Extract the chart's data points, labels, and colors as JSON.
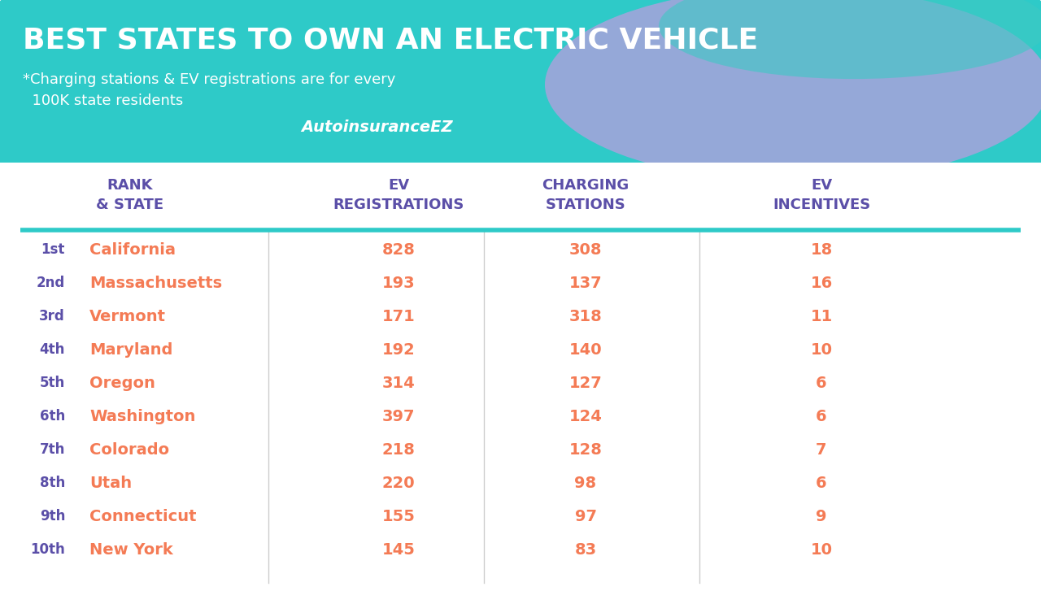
{
  "title": "BEST STATES TO OWN AN ELECTRIC VEHICLE",
  "subtitle1": "*Charging stations & EV registrations are for every",
  "subtitle2": "  100K state residents",
  "brand": "AutoinsuranceEZ",
  "header_bg_color": "#2ECAC8",
  "table_bg_color": "#FFFFFF",
  "header_text_color": "#FFFFFF",
  "col_header_color": "#5B4FA8",
  "rank_color": "#5B4FA8",
  "state_color": "#F47B55",
  "data_color": "#F47B55",
  "divider_color": "#2ECAC8",
  "col_headers": [
    "RANK\n& STATE",
    "EV\nREGISTRATIONS",
    "CHARGING\nSTATIONS",
    "EV\nINCENTIVES"
  ],
  "ranks": [
    "1st",
    "2nd",
    "3rd",
    "4th",
    "5th",
    "6th",
    "7th",
    "8th",
    "9th",
    "10th"
  ],
  "states": [
    "California",
    "Massachusetts",
    "Vermont",
    "Maryland",
    "Oregon",
    "Washington",
    "Colorado",
    "Utah",
    "Connecticut",
    "New York"
  ],
  "ev_registrations": [
    828,
    193,
    171,
    192,
    314,
    397,
    218,
    220,
    155,
    145
  ],
  "charging_stations": [
    308,
    137,
    318,
    140,
    127,
    124,
    128,
    98,
    97,
    83
  ],
  "ev_incentives": [
    18,
    16,
    11,
    10,
    6,
    6,
    7,
    6,
    9,
    10
  ]
}
